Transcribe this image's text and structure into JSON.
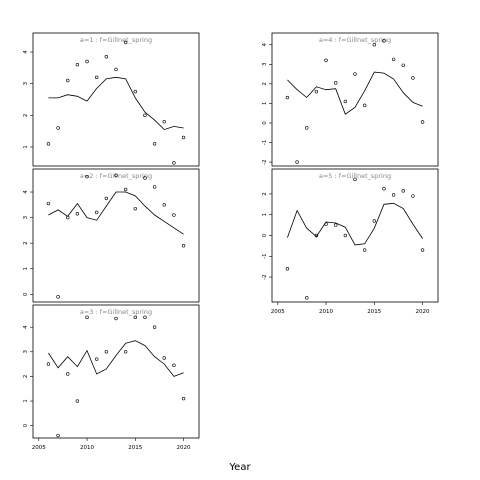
{
  "chart_data": {
    "type": "scatter",
    "xlabel": "Year",
    "x": [
      2006,
      2007,
      2008,
      2009,
      2010,
      2011,
      2012,
      2013,
      2014,
      2015,
      2016,
      2017,
      2018,
      2019,
      2020
    ],
    "xticks": [
      2005,
      2010,
      2015,
      2020
    ],
    "panels": [
      {
        "title": "a=1 : f=Gillnet_spring",
        "ylim": [
          0.4,
          4.6
        ],
        "yticks": [
          1,
          2,
          3,
          4
        ],
        "fitted": [
          2.55,
          2.55,
          2.65,
          2.6,
          2.45,
          2.85,
          3.15,
          3.2,
          3.15,
          2.55,
          2.1,
          1.85,
          1.55,
          1.65,
          1.6
        ],
        "observed": [
          1.1,
          1.6,
          3.1,
          3.6,
          3.7,
          3.2,
          3.85,
          3.45,
          4.3,
          2.75,
          2.0,
          1.1,
          1.8,
          0.5,
          1.3
        ]
      },
      {
        "title": "a=2 : f=Gillnet_spring",
        "ylim": [
          -0.3,
          4.9
        ],
        "yticks": [
          0,
          1,
          2,
          3,
          4
        ],
        "fitted": [
          3.1,
          3.3,
          3.05,
          3.55,
          3.0,
          2.9,
          3.45,
          4.0,
          4.0,
          3.85,
          3.45,
          3.1,
          2.85,
          2.6,
          2.35
        ],
        "observed": [
          3.55,
          -0.1,
          3.0,
          3.15,
          4.6,
          3.2,
          3.75,
          4.65,
          4.1,
          3.35,
          4.55,
          4.2,
          3.5,
          3.1,
          1.9
        ]
      },
      {
        "title": "a=3 : f=Gillnet_spring",
        "ylim": [
          -0.5,
          4.9
        ],
        "yticks": [
          0,
          1,
          2,
          3,
          4
        ],
        "fitted": [
          2.95,
          2.35,
          2.8,
          2.4,
          3.05,
          2.1,
          2.3,
          2.85,
          3.35,
          3.45,
          3.25,
          2.8,
          2.5,
          2.0,
          2.15
        ],
        "observed": [
          2.5,
          -0.4,
          2.1,
          1.0,
          4.4,
          2.7,
          3.0,
          4.35,
          3.0,
          4.4,
          4.4,
          4.0,
          2.75,
          2.45,
          1.1
        ]
      },
      {
        "title": "a=4 : f=Gillnet_spring",
        "ylim": [
          -2.2,
          4.6
        ],
        "yticks": [
          -2,
          -1,
          0,
          1,
          2,
          3,
          4
        ],
        "fitted": [
          2.2,
          1.7,
          1.3,
          1.85,
          1.7,
          1.75,
          0.45,
          0.8,
          1.65,
          2.6,
          2.55,
          2.25,
          1.55,
          1.05,
          0.85
        ],
        "observed": [
          1.3,
          -2.0,
          -0.25,
          1.6,
          3.2,
          2.05,
          1.1,
          2.5,
          0.9,
          4.0,
          4.2,
          3.25,
          2.95,
          2.3,
          0.05
        ]
      },
      {
        "title": "a=5 : f=Gillnet_spring",
        "ylim": [
          -3.2,
          3.2
        ],
        "yticks": [
          -2,
          -1,
          0,
          1,
          2
        ],
        "fitted": [
          -0.1,
          1.2,
          0.35,
          -0.05,
          0.65,
          0.6,
          0.4,
          -0.45,
          -0.4,
          0.35,
          1.5,
          1.55,
          1.3,
          0.55,
          -0.15
        ],
        "observed": [
          -1.6,
          null,
          -3.0,
          0.0,
          0.55,
          0.5,
          0.0,
          2.7,
          -0.7,
          0.7,
          2.25,
          1.95,
          2.15,
          1.9,
          -0.7
        ]
      }
    ]
  }
}
